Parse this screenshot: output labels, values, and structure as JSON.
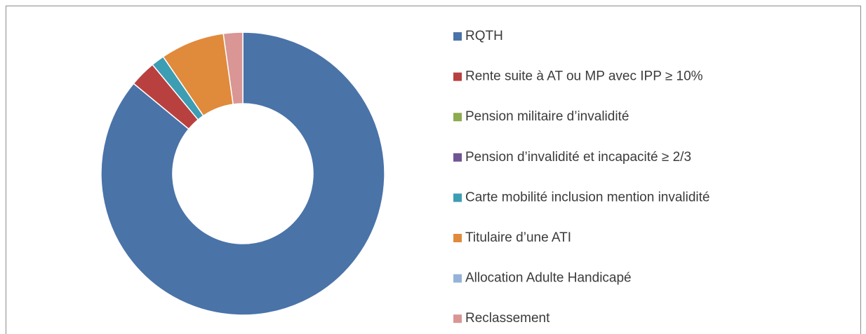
{
  "chart_data": {
    "type": "donut",
    "categories": [
      "RQTH",
      "Rente suite à AT ou MP avec IPP ≥ 10%",
      "Pension militaire d’invalidité",
      "Pension d’invalidité et incapacité ≥ 2/3",
      "Carte mobilité inclusion mention invalidité",
      "Titulaire d’une ATI",
      "Allocation Adulte Handicapé",
      "Reclassement"
    ],
    "values": [
      86,
      3,
      0,
      0,
      1.5,
      7.3,
      0,
      2.2
    ],
    "colors": [
      "#4a73a8",
      "#b8413f",
      "#8dab4f",
      "#6f5692",
      "#3c9db3",
      "#e08a3c",
      "#95b3d7",
      "#d99694"
    ],
    "legend": "right"
  }
}
